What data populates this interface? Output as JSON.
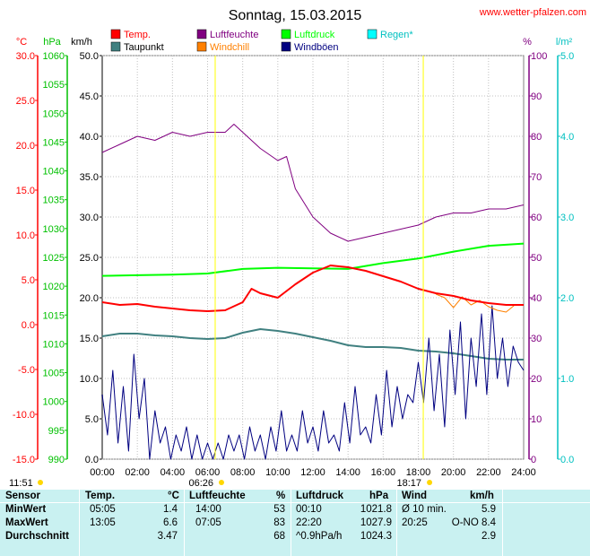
{
  "site": "www.wetter-pfalzen.com",
  "sunrise": "06:26",
  "sunset": "18:17",
  "time_left": "11:51",
  "chart_data": {
    "type": "line",
    "title": "Sonntag, 15.03.2015",
    "x_ticks": [
      "00:00",
      "02:00",
      "04:00",
      "06:00",
      "08:00",
      "10:00",
      "12:00",
      "14:00",
      "16:00",
      "18:00",
      "20:00",
      "22:00",
      "24:00"
    ],
    "xlim": [
      0,
      24
    ],
    "axes": {
      "temp": {
        "unit": "°C",
        "ylim": [
          -15,
          30
        ],
        "ticks": [
          "30.0",
          "25.0",
          "20.0",
          "15.0",
          "10.0",
          "5.0",
          "0.0",
          "-5.0",
          "-10.0",
          "-15.0"
        ],
        "color": "#ff0000"
      },
      "pressure": {
        "unit": "hPa",
        "ylim": [
          990,
          1060
        ],
        "ticks": [
          "1060",
          "1055",
          "1050",
          "1045",
          "1040",
          "1035",
          "1030",
          "1025",
          "1020",
          "1015",
          "1010",
          "1005",
          "1000",
          "995",
          "990"
        ],
        "color": "#00c000"
      },
      "wind": {
        "unit": "km/h",
        "ylim": [
          0,
          50
        ],
        "ticks": [
          "50.0",
          "45.0",
          "40.0",
          "35.0",
          "30.0",
          "25.0",
          "20.0",
          "15.0",
          "10.0",
          "5.0",
          "0.0"
        ],
        "color": "#000000"
      },
      "humidity": {
        "unit": "%",
        "ylim": [
          0,
          100
        ],
        "ticks": [
          "100",
          "90",
          "80",
          "70",
          "60",
          "50",
          "40",
          "30",
          "20",
          "10",
          "0"
        ],
        "color": "#800080"
      },
      "rain": {
        "unit": "l/m²",
        "ylim": [
          0,
          5
        ],
        "ticks": [
          "5.0",
          "4.0",
          "3.0",
          "2.0",
          "1.0",
          "0.0"
        ],
        "color": "#00c0c0"
      }
    },
    "legend": [
      {
        "name": "Temp.",
        "color": "#ff0000"
      },
      {
        "name": "Luftfeuchte",
        "color": "#800080"
      },
      {
        "name": "Luftdruck",
        "color": "#00ff00"
      },
      {
        "name": "Regen*",
        "color": "#00ffff"
      },
      {
        "name": "Taupunkt",
        "color": "#408080"
      },
      {
        "name": "Windchill",
        "color": "#ff8000"
      },
      {
        "name": "Windböen",
        "color": "#000080"
      }
    ],
    "series": [
      {
        "name": "Temp.",
        "axis": "temp",
        "color": "#ff0000",
        "points": [
          [
            0,
            2.5
          ],
          [
            1,
            2.2
          ],
          [
            2,
            2.3
          ],
          [
            3,
            2.0
          ],
          [
            4,
            1.8
          ],
          [
            5,
            1.6
          ],
          [
            6,
            1.5
          ],
          [
            7,
            1.6
          ],
          [
            8,
            2.5
          ],
          [
            8.5,
            4.0
          ],
          [
            9,
            3.5
          ],
          [
            10,
            3.0
          ],
          [
            11,
            4.5
          ],
          [
            12,
            5.8
          ],
          [
            13,
            6.6
          ],
          [
            14,
            6.4
          ],
          [
            15,
            6.0
          ],
          [
            16,
            5.4
          ],
          [
            17,
            4.8
          ],
          [
            18,
            4.0
          ],
          [
            19,
            3.5
          ],
          [
            20,
            3.2
          ],
          [
            21,
            2.7
          ],
          [
            22,
            2.4
          ],
          [
            23,
            2.2
          ],
          [
            24,
            2.2
          ]
        ]
      },
      {
        "name": "Taupunkt",
        "axis": "temp",
        "color": "#408080",
        "points": [
          [
            0,
            -1.3
          ],
          [
            1,
            -1.0
          ],
          [
            2,
            -1.0
          ],
          [
            3,
            -1.2
          ],
          [
            4,
            -1.3
          ],
          [
            5,
            -1.5
          ],
          [
            6,
            -1.6
          ],
          [
            7,
            -1.5
          ],
          [
            8,
            -0.9
          ],
          [
            9,
            -0.5
          ],
          [
            10,
            -0.7
          ],
          [
            11,
            -1.0
          ],
          [
            12,
            -1.4
          ],
          [
            13,
            -1.8
          ],
          [
            14,
            -2.3
          ],
          [
            15,
            -2.5
          ],
          [
            16,
            -2.5
          ],
          [
            17,
            -2.6
          ],
          [
            18,
            -2.9
          ],
          [
            19,
            -3.0
          ],
          [
            20,
            -3.2
          ],
          [
            21,
            -3.5
          ],
          [
            22,
            -3.8
          ],
          [
            23,
            -3.9
          ],
          [
            24,
            -3.9
          ]
        ]
      },
      {
        "name": "Windchill",
        "axis": "temp",
        "color": "#ff8000",
        "points": [
          [
            19,
            3.4
          ],
          [
            19.5,
            3.0
          ],
          [
            20,
            1.9
          ],
          [
            20.5,
            3.1
          ],
          [
            21,
            2.2
          ],
          [
            21.5,
            2.7
          ],
          [
            22,
            2.0
          ],
          [
            22.5,
            1.6
          ],
          [
            23,
            1.4
          ],
          [
            23.5,
            2.2
          ],
          [
            24,
            2.2
          ]
        ]
      },
      {
        "name": "Luftfeuchte",
        "axis": "humidity",
        "color": "#800080",
        "points": [
          [
            0,
            76
          ],
          [
            1,
            78
          ],
          [
            2,
            80
          ],
          [
            3,
            79
          ],
          [
            4,
            81
          ],
          [
            5,
            80
          ],
          [
            6,
            81
          ],
          [
            7,
            81
          ],
          [
            7.5,
            83
          ],
          [
            8,
            81
          ],
          [
            9,
            77
          ],
          [
            10,
            74
          ],
          [
            10.5,
            75
          ],
          [
            11,
            67
          ],
          [
            12,
            60
          ],
          [
            13,
            56
          ],
          [
            14,
            54
          ],
          [
            15,
            55
          ],
          [
            16,
            56
          ],
          [
            17,
            57
          ],
          [
            18,
            58
          ],
          [
            19,
            60
          ],
          [
            20,
            61
          ],
          [
            21,
            61
          ],
          [
            22,
            62
          ],
          [
            23,
            62
          ],
          [
            24,
            63
          ]
        ]
      },
      {
        "name": "Luftdruck",
        "axis": "pressure",
        "color": "#00ff00",
        "points": [
          [
            0,
            1021.8
          ],
          [
            2,
            1021.9
          ],
          [
            4,
            1022.0
          ],
          [
            6,
            1022.2
          ],
          [
            8,
            1023.0
          ],
          [
            10,
            1023.2
          ],
          [
            12,
            1023.1
          ],
          [
            14,
            1023.0
          ],
          [
            16,
            1024.0
          ],
          [
            18,
            1024.8
          ],
          [
            20,
            1026.0
          ],
          [
            22,
            1027.0
          ],
          [
            24,
            1027.4
          ]
        ]
      },
      {
        "name": "Windböen",
        "axis": "wind",
        "color": "#000080",
        "points": [
          [
            0,
            8
          ],
          [
            0.3,
            3
          ],
          [
            0.6,
            11
          ],
          [
            0.9,
            2
          ],
          [
            1.2,
            9
          ],
          [
            1.5,
            1
          ],
          [
            1.8,
            13
          ],
          [
            2.1,
            5
          ],
          [
            2.4,
            10
          ],
          [
            2.7,
            0
          ],
          [
            3.0,
            6
          ],
          [
            3.3,
            2
          ],
          [
            3.6,
            4
          ],
          [
            3.9,
            0
          ],
          [
            4.2,
            3
          ],
          [
            4.5,
            1
          ],
          [
            4.8,
            4
          ],
          [
            5.1,
            0
          ],
          [
            5.4,
            3
          ],
          [
            5.7,
            0
          ],
          [
            6.0,
            2
          ],
          [
            6.3,
            0
          ],
          [
            6.6,
            2
          ],
          [
            6.9,
            0
          ],
          [
            7.2,
            3
          ],
          [
            7.5,
            1
          ],
          [
            7.8,
            3
          ],
          [
            8.1,
            0
          ],
          [
            8.4,
            4
          ],
          [
            8.7,
            1
          ],
          [
            9.0,
            3
          ],
          [
            9.3,
            0
          ],
          [
            9.6,
            4
          ],
          [
            9.9,
            1
          ],
          [
            10.2,
            6
          ],
          [
            10.5,
            1
          ],
          [
            10.8,
            3
          ],
          [
            11.1,
            1
          ],
          [
            11.4,
            6
          ],
          [
            11.7,
            2
          ],
          [
            12.0,
            4
          ],
          [
            12.3,
            1
          ],
          [
            12.6,
            6
          ],
          [
            12.9,
            2
          ],
          [
            13.2,
            3
          ],
          [
            13.5,
            1
          ],
          [
            13.8,
            7
          ],
          [
            14.1,
            2
          ],
          [
            14.4,
            9
          ],
          [
            14.7,
            3
          ],
          [
            15.0,
            4
          ],
          [
            15.3,
            2
          ],
          [
            15.6,
            8
          ],
          [
            15.9,
            3
          ],
          [
            16.2,
            11
          ],
          [
            16.5,
            4
          ],
          [
            16.8,
            9
          ],
          [
            17.1,
            5
          ],
          [
            17.4,
            8
          ],
          [
            17.7,
            7
          ],
          [
            18.0,
            12
          ],
          [
            18.3,
            7
          ],
          [
            18.6,
            15
          ],
          [
            18.9,
            6
          ],
          [
            19.2,
            13
          ],
          [
            19.5,
            4
          ],
          [
            19.8,
            16
          ],
          [
            20.1,
            8
          ],
          [
            20.4,
            17
          ],
          [
            20.7,
            5
          ],
          [
            21.0,
            15
          ],
          [
            21.3,
            9
          ],
          [
            21.6,
            18
          ],
          [
            21.9,
            8
          ],
          [
            22.2,
            19
          ],
          [
            22.5,
            10
          ],
          [
            22.8,
            15
          ],
          [
            23.1,
            9
          ],
          [
            23.4,
            14
          ],
          [
            23.7,
            12
          ],
          [
            24.0,
            11
          ]
        ]
      }
    ]
  },
  "stats": {
    "headers": {
      "sensor": "Sensor",
      "temp": "Temp.",
      "temp_unit": "°C",
      "hum": "Luftfeuchte",
      "hum_unit": "%",
      "press": "Luftdruck",
      "press_unit": "hPa",
      "wind": "Wind",
      "wind_unit": "km/h"
    },
    "rows": [
      {
        "label": "MinWert",
        "temp_time": "05:05",
        "temp_val": "1.4",
        "hum_time": "14:00",
        "hum_val": "53",
        "press_time": "00:10",
        "press_val": "1021.8",
        "wind_time": "Ø 10 min.",
        "wind_val": "5.9"
      },
      {
        "label": "MaxWert",
        "temp_time": "13:05",
        "temp_val": "6.6",
        "hum_time": "07:05",
        "hum_val": "83",
        "press_time": "22:20",
        "press_val": "1027.9",
        "wind_time": "20:25",
        "wind_val": "O-NO 8.4"
      },
      {
        "label": "Durchschnitt",
        "temp_time": "",
        "temp_val": "3.47",
        "hum_time": "",
        "hum_val": "68",
        "press_time": "^0.9hPa/h",
        "press_val": "1024.3",
        "wind_time": "",
        "wind_val": "2.9"
      }
    ]
  }
}
